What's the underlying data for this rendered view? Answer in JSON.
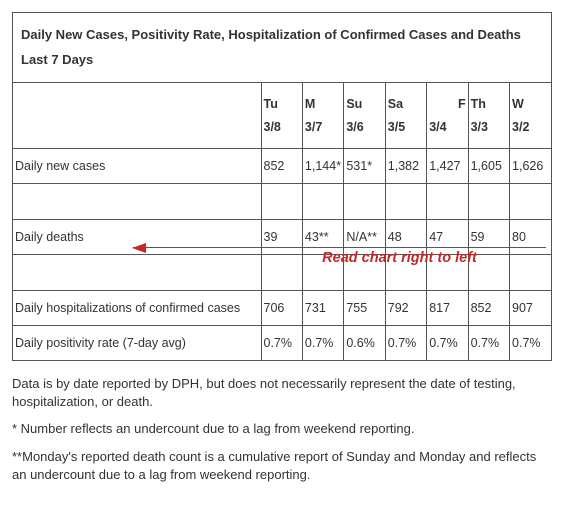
{
  "title": "Daily New Cases, Positivity Rate, Hospitalization of Confirmed Cases and Deaths Last 7 Days",
  "columns": [
    {
      "day": "Tu",
      "date": "3/8"
    },
    {
      "day": "M",
      "date": "3/7"
    },
    {
      "day": "Su",
      "date": "3/6"
    },
    {
      "day": "Sa",
      "date": "3/5"
    },
    {
      "day": "F",
      "date": "3/4"
    },
    {
      "day": "Th",
      "date": "3/3"
    },
    {
      "day": "W",
      "date": "3/2"
    }
  ],
  "rows": [
    {
      "label": "Daily new cases",
      "values": [
        "852",
        "1,144*",
        "531*",
        "1,382",
        "1,427",
        "1,605",
        "1,626"
      ]
    },
    {
      "label": "Daily deaths",
      "values": [
        "39",
        "43**",
        "N/A**",
        "48",
        "47",
        "59",
        "80"
      ]
    },
    {
      "label": "Daily hospitalizations of confirmed cases",
      "values": [
        "706",
        "731",
        "755",
        "792",
        "817",
        "852",
        "907"
      ]
    },
    {
      "label": "Daily positivity rate (7-day avg)",
      "values": [
        "0.7%",
        "0.7%",
        "0.6%",
        "0.7%",
        "0.7%",
        "0.7%",
        "0.7%"
      ]
    }
  ],
  "annotation": "Read chart right to left",
  "footnotes": [
    "Data is by date reported by DPH, but does not necessarily represent the date of testing, hospitalization, or death.",
    "* Number reflects an undercount due to a lag from weekend reporting.",
    "**Monday's reported death count is a cumulative report of Sunday and Monday and reflects an undercount due to a lag from weekend reporting."
  ],
  "colors": {
    "border": "#555555",
    "text": "#333333",
    "annotation": "#c62828",
    "background": "#ffffff"
  },
  "col_header_align": [
    "left",
    "left",
    "left",
    "left",
    "right",
    "left",
    "left"
  ]
}
